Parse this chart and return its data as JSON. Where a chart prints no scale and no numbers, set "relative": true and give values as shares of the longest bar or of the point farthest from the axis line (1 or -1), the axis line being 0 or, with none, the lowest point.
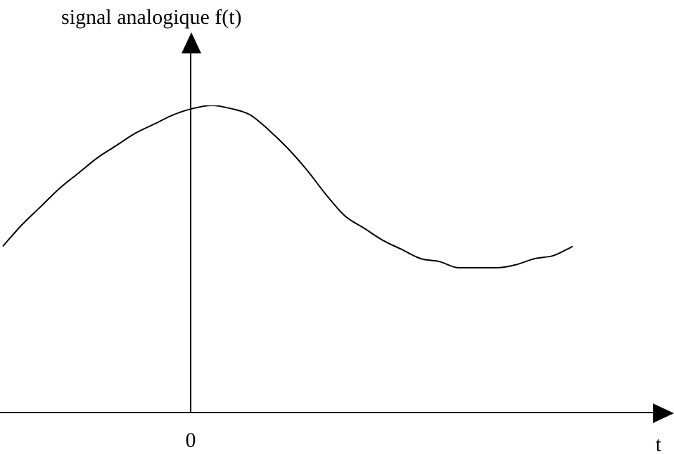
{
  "chart_data": {
    "type": "line",
    "relative": true,
    "ylabel": "signal analogique f(t)",
    "xlabel": "t",
    "color": "#000000",
    "marker": "none",
    "legend": false,
    "annotations": [
      "0"
    ],
    "categories": [
      null,
      null,
      null,
      null,
      null,
      null,
      null,
      null,
      null,
      null,
      null,
      null,
      null,
      null,
      null,
      null,
      null,
      null,
      null,
      null,
      null,
      null,
      null,
      null,
      null,
      null,
      null,
      null,
      null,
      null,
      null
    ],
    "values": [
      0.54,
      0.61,
      0.67,
      0.73,
      0.78,
      0.83,
      0.87,
      0.91,
      0.94,
      0.97,
      0.99,
      1,
      0.99,
      0.97,
      0.92,
      0.86,
      0.79,
      0.71,
      0.64,
      0.6,
      0.56,
      0.53,
      0.5,
      0.49,
      0.47,
      0.47,
      0.47,
      0.48,
      0.5,
      0.51,
      0.54
    ]
  }
}
